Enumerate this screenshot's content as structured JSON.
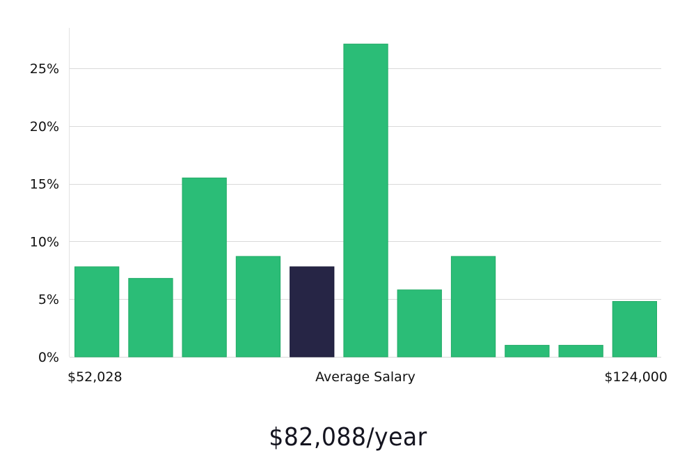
{
  "chart_data": {
    "type": "bar",
    "title": "",
    "ylabel": "",
    "xlabel": "Average Salary",
    "x_min_label": "$52,028",
    "x_max_label": "$124,000",
    "ylim": [
      0,
      28.5
    ],
    "yticks": [
      0,
      5,
      10,
      15,
      20,
      25
    ],
    "ytick_labels": [
      "0%",
      "5%",
      "10%",
      "15%",
      "20%",
      "25%"
    ],
    "grid": true,
    "values": [
      7.8,
      6.8,
      15.5,
      8.7,
      7.8,
      27.1,
      5.8,
      8.7,
      1.0,
      1.0,
      4.8
    ],
    "highlight_index": 4,
    "bar_color": "#2bbd77",
    "bar_edge_color": "#22aa66",
    "highlight_color": "#262545",
    "grid_color": "#d9d9d9"
  },
  "caption": {
    "salary_text": "$82,088/year"
  }
}
